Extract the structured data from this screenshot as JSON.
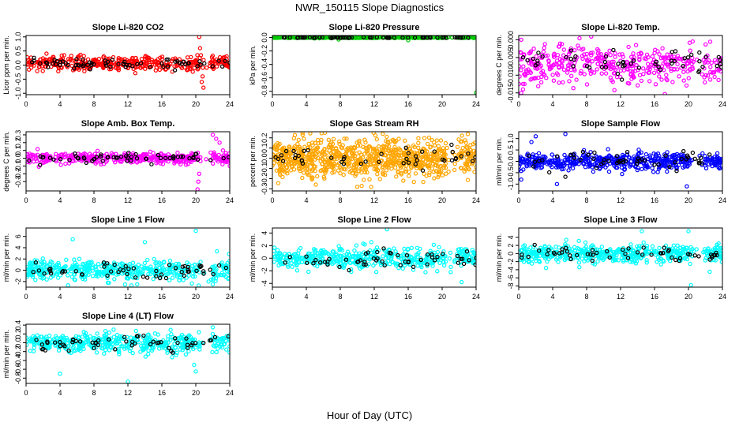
{
  "figure": {
    "title": "NWR_150115  Slope Diagnostics",
    "xlabel": "Hour of Day (UTC)"
  },
  "colors": {
    "black_points": "#000000",
    "frame": "#000000"
  },
  "chart_data": [
    {
      "type": "scatter",
      "title": "Slope Li-820 CO2",
      "ylabel": "Licor ppm per min.",
      "color": "#ff0000",
      "ylim": [
        -1.05,
        1.05
      ],
      "yticks": [
        -1.0,
        -0.5,
        0.0,
        0.5,
        1.0
      ],
      "yticklabels": [
        "-1.0",
        "-0.5",
        "0.0",
        "0.5",
        "1.0"
      ],
      "xlim": [
        0,
        24
      ],
      "xticks": [
        0,
        4,
        8,
        12,
        16,
        20,
        24
      ],
      "cluster": {
        "center": 0.05,
        "spread": 0.13,
        "n": 420
      },
      "black": {
        "center": 0.05,
        "spread": 0.1,
        "n": 70
      },
      "outliers": [
        [
          20.4,
          1.0
        ],
        [
          20.5,
          0.6
        ],
        [
          20.6,
          0.35
        ],
        [
          20.8,
          -0.4
        ],
        [
          20.9,
          -0.8
        ],
        [
          20.7,
          -0.6
        ]
      ]
    },
    {
      "type": "scatter",
      "title": "Slope Li-820 Pressure",
      "ylabel": "kPa per min.",
      "color": "#00cc00",
      "ylim": [
        -0.85,
        0.03
      ],
      "yticks": [
        -0.8,
        -0.6,
        -0.4,
        -0.2,
        0.0
      ],
      "yticklabels": [
        "-0.8",
        "-0.6",
        "-0.4",
        "-0.2",
        "0.0"
      ],
      "xlim": [
        0,
        24
      ],
      "xticks": [
        0,
        4,
        8,
        12,
        16,
        20,
        24
      ],
      "cluster": {
        "center": 0.0,
        "spread": 0.004,
        "n": 350
      },
      "black": {
        "center": 0.0,
        "spread": 0.003,
        "n": 60
      },
      "outliers": [
        [
          7.8,
          -0.03
        ],
        [
          16.0,
          -0.04
        ],
        [
          24.0,
          -0.82
        ]
      ]
    },
    {
      "type": "scatter",
      "title": "Slope Li-820 Temp.",
      "ylabel": "degrees C per min.",
      "color": "#ff00ff",
      "ylim": [
        -0.0155,
        0.0012
      ],
      "yticks": [
        -0.015,
        -0.01,
        -0.005,
        0.0
      ],
      "yticklabels": [
        "-0.015",
        "-0.010",
        "-0.005",
        "0.000"
      ],
      "xlim": [
        0,
        24
      ],
      "xticks": [
        0,
        4,
        8,
        12,
        16,
        20,
        24
      ],
      "cluster": {
        "center": -0.007,
        "spread": 0.0028,
        "n": 420
      },
      "black": {
        "center": -0.006,
        "spread": 0.002,
        "n": 55
      },
      "outliers": [
        [
          0.3,
          -0.015
        ],
        [
          0.3,
          0.0
        ],
        [
          0.5,
          -0.014
        ]
      ]
    },
    {
      "type": "scatter",
      "title": "Slope Amb. Box Temp.",
      "ylabel": "degrees C per min.",
      "color": "#ff00ff",
      "ylim": [
        -0.42,
        0.34
      ],
      "yticks": [
        -0.3,
        -0.2,
        -0.1,
        0.0,
        0.1,
        0.2,
        0.3
      ],
      "yticklabels": [
        "-0.3",
        "-0.2",
        "-0.1",
        "0.0",
        "0.1",
        "0.2",
        "0.3"
      ],
      "xlim": [
        0,
        24
      ],
      "xticks": [
        0,
        4,
        8,
        12,
        16,
        20,
        24
      ],
      "cluster": {
        "center": 0.0,
        "spread": 0.035,
        "n": 420
      },
      "black": {
        "center": 0.0,
        "spread": 0.03,
        "n": 60
      },
      "outliers": [
        [
          20.2,
          -0.4
        ],
        [
          20.3,
          -0.3
        ],
        [
          20.4,
          -0.2
        ],
        [
          22.0,
          0.3
        ],
        [
          22.4,
          0.25
        ],
        [
          22.8,
          0.2
        ],
        [
          23.2,
          0.1
        ],
        [
          23.6,
          -0.05
        ],
        [
          24.0,
          -0.1
        ]
      ]
    },
    {
      "type": "scatter",
      "title": "Slope Gas Stream RH",
      "ylabel": "percent per min.",
      "color": "#ffa500",
      "ylim": [
        -0.32,
        0.26
      ],
      "yticks": [
        -0.3,
        -0.2,
        -0.1,
        0.0,
        0.1,
        0.2
      ],
      "yticklabels": [
        "-0.3",
        "-0.2",
        "-0.1",
        "0.0",
        "0.1",
        "0.2"
      ],
      "xlim": [
        0,
        24
      ],
      "xticks": [
        0,
        4,
        8,
        12,
        16,
        20,
        24
      ],
      "cluster": {
        "center": 0.0,
        "spread": 0.09,
        "n": 900
      },
      "black": {
        "center": 0.0,
        "spread": 0.05,
        "n": 45
      },
      "outliers": [
        [
          13.0,
          0.24
        ],
        [
          10.0,
          -0.28
        ]
      ]
    },
    {
      "type": "scatter",
      "title": "Slope Sample Flow",
      "ylabel": "ml/min per min.",
      "color": "#0000ff",
      "ylim": [
        -1.3,
        1.3
      ],
      "yticks": [
        -1.0,
        -0.5,
        0.0,
        0.5,
        1.0
      ],
      "yticklabels": [
        "-1.0",
        "-0.5",
        "0.0",
        "0.5",
        "1.0"
      ],
      "xlim": [
        0,
        24
      ],
      "xticks": [
        0,
        4,
        8,
        12,
        16,
        20,
        24
      ],
      "cluster": {
        "center": 0.0,
        "spread": 0.18,
        "n": 520
      },
      "black": {
        "center": 0.0,
        "spread": 0.25,
        "n": 55
      },
      "outliers": [
        [
          1.5,
          0.85
        ],
        [
          2.0,
          1.1
        ],
        [
          5.5,
          1.2
        ],
        [
          0.3,
          -0.8
        ],
        [
          4.5,
          -1.0
        ],
        [
          19.8,
          -1.1
        ]
      ]
    },
    {
      "type": "scatter",
      "title": "Slope Line 1 Flow",
      "ylabel": "ml/min per min.",
      "color": "#00ffff",
      "ylim": [
        -3.0,
        7.5
      ],
      "yticks": [
        -2,
        0,
        2,
        4,
        6
      ],
      "yticklabels": [
        "-2",
        "0",
        "2",
        "4",
        "6"
      ],
      "xlim": [
        0,
        24
      ],
      "xticks": [
        0,
        4,
        8,
        12,
        16,
        20,
        24
      ],
      "cluster": {
        "center": 0.0,
        "spread": 0.9,
        "n": 500
      },
      "black": {
        "center": 0.0,
        "spread": 0.7,
        "n": 55
      },
      "outliers": [
        [
          5.5,
          5.5
        ],
        [
          14.0,
          5.0
        ],
        [
          20.0,
          7.0
        ],
        [
          21.5,
          -2.0
        ],
        [
          22.0,
          -2.5
        ]
      ]
    },
    {
      "type": "scatter",
      "title": "Slope Line 2 Flow",
      "ylabel": "ml/min per min.",
      "color": "#00ffff",
      "ylim": [
        -4.6,
        4.8
      ],
      "yticks": [
        -4,
        -2,
        0,
        2,
        4
      ],
      "yticklabels": [
        "-4",
        "-2",
        "0",
        "2",
        "4"
      ],
      "xlim": [
        0,
        24
      ],
      "xticks": [
        0,
        4,
        8,
        12,
        16,
        20,
        24
      ],
      "cluster": {
        "center": 0.0,
        "spread": 0.8,
        "n": 500
      },
      "black": {
        "center": 0.0,
        "spread": 0.8,
        "n": 55
      },
      "outliers": [
        [
          13.5,
          4.6
        ],
        [
          22.3,
          -3.8
        ],
        [
          21.0,
          -2.2
        ]
      ]
    },
    {
      "type": "scatter",
      "title": "Slope Line 3 Flow",
      "ylabel": "ml/min per min.",
      "color": "#00ffff",
      "ylim": [
        -8.3,
        6.3
      ],
      "yticks": [
        -8,
        -6,
        -4,
        -2,
        0,
        2,
        4
      ],
      "yticklabels": [
        "-8",
        "-6",
        "-4",
        "-2",
        "0",
        "2",
        "4"
      ],
      "xlim": [
        0,
        24
      ],
      "xticks": [
        0,
        4,
        8,
        12,
        16,
        20,
        24
      ],
      "cluster": {
        "center": 0.0,
        "spread": 1.1,
        "n": 500
      },
      "black": {
        "center": 0.0,
        "spread": 1.0,
        "n": 55
      },
      "outliers": [
        [
          14.5,
          5.5
        ],
        [
          20.0,
          5.5
        ],
        [
          20.3,
          -7.8
        ],
        [
          22.5,
          -4.5
        ]
      ]
    },
    {
      "type": "scatter",
      "title": "Slope Line 4 (LT) Flow",
      "ylabel": "ml/min per min.",
      "color": "#00ffff",
      "ylim": [
        -0.92,
        0.42
      ],
      "yticks": [
        -0.8,
        -0.6,
        -0.4,
        -0.2,
        0.0,
        0.2,
        0.4
      ],
      "yticklabels": [
        "-0.8",
        "-0.6",
        "-0.4",
        "-0.2",
        "0.0",
        "0.2",
        "0.4"
      ],
      "xlim": [
        0,
        24
      ],
      "xticks": [
        0,
        4,
        8,
        12,
        16,
        20,
        24
      ],
      "cluster": {
        "center": 0.0,
        "spread": 0.11,
        "n": 500
      },
      "black": {
        "center": 0.0,
        "spread": 0.09,
        "n": 55
      },
      "outliers": [
        [
          4.0,
          -0.7
        ],
        [
          12.0,
          -0.88
        ],
        [
          19.8,
          -0.5
        ],
        [
          20.0,
          -0.65
        ],
        [
          22.0,
          0.35
        ]
      ]
    }
  ]
}
